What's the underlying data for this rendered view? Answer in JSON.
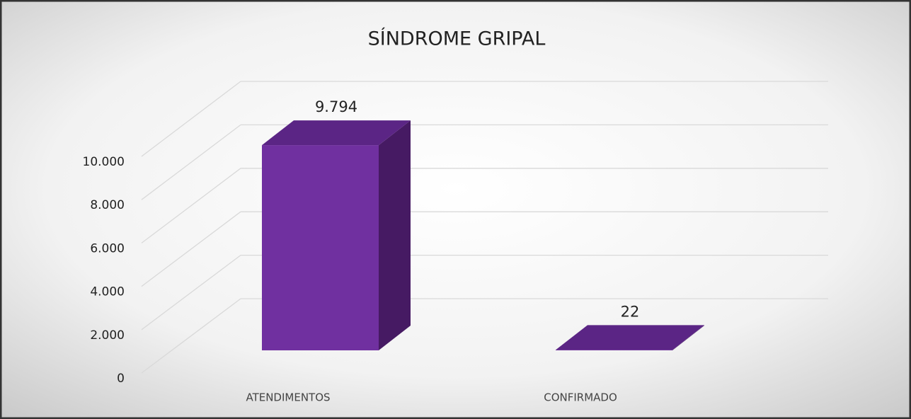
{
  "chart_data": {
    "type": "bar3d",
    "title": "SÍNDROME GRIPAL",
    "categories": [
      "ATENDIMENTOS",
      "CONFIRMADO"
    ],
    "values": [
      9794,
      22
    ],
    "value_labels": [
      "9.794",
      "22"
    ],
    "color": "#7030a0",
    "ylim": [
      0,
      10000
    ],
    "yticks": [
      0,
      {
        "value": 2000,
        "label": "2.000"
      },
      {
        "value": 4000,
        "label": "4.000"
      },
      {
        "value": 6000,
        "label": "6.000"
      },
      {
        "value": 8000,
        "label": "8.000"
      },
      {
        "value": 10000,
        "label": "10.000"
      }
    ],
    "grid": true
  }
}
